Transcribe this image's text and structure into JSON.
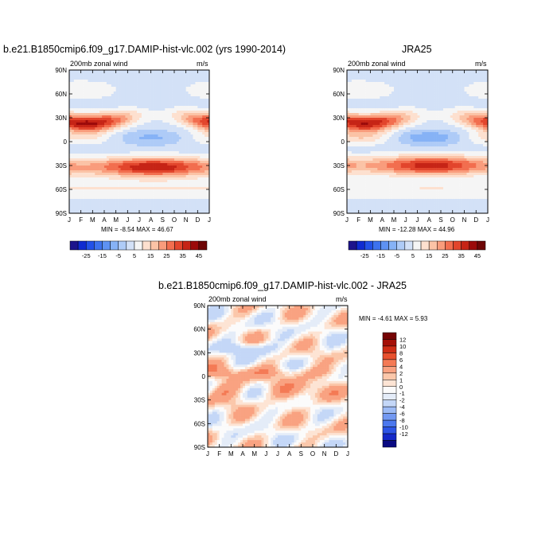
{
  "colors": {
    "full_levels": [
      "#1d148c",
      "#0f2bd1",
      "#2251e8",
      "#3d72ee",
      "#5e92f3",
      "#86b2f6",
      "#aecbf7",
      "#d3e1f7",
      "#f5f5f5",
      "#fde0cf",
      "#fbc3a6",
      "#f99c7c",
      "#f26e4f",
      "#e2452c",
      "#c62416",
      "#9c0a0a",
      "#6e0606"
    ],
    "diff_levels": [
      "#0a0a82",
      "#1428c8",
      "#2d55e6",
      "#4c78ee",
      "#7399f2",
      "#9dbbf5",
      "#c4d7f7",
      "#e4ecf8",
      "#fbfbfb",
      "#fde4d4",
      "#fbc7aa",
      "#f9a281",
      "#f47a55",
      "#e8512f",
      "#cf2d16",
      "#a51008",
      "#760404"
    ]
  },
  "chart_data": [
    {
      "type": "heatmap",
      "id": "model",
      "title": "b.e21.B1850cmip6.f09_g17.DAMIP-hist-vlc.002 (yrs 1990-2014)",
      "left_label": "200mb zonal wind",
      "right_label": "m/s",
      "xticks": [
        "J",
        "F",
        "M",
        "A",
        "M",
        "J",
        "J",
        "A",
        "S",
        "O",
        "N",
        "D",
        "J"
      ],
      "yticks": [
        "90N",
        "60N",
        "30N",
        "0",
        "30S",
        "60S",
        "90S"
      ],
      "x_range": [
        0,
        12
      ],
      "y_range": [
        -90,
        90
      ],
      "min": -8.54,
      "max": 46.67,
      "minmax_text": "MIN =  -8.54 MAX =  46.67",
      "levels": [
        -25,
        -20,
        -15,
        -10,
        -5,
        0,
        5,
        10,
        15,
        20,
        25,
        30,
        35,
        40,
        45
      ],
      "colorbar_labels": [
        "-25",
        "-15",
        "-5",
        "5",
        "15",
        "25",
        "35",
        "45"
      ],
      "jets": [
        {
          "lat": 28,
          "amp": 40,
          "phase_month": 1.5,
          "seasonal_amp": 0.45,
          "width": 11
        },
        {
          "lat": -32,
          "amp": 38,
          "phase_month": 7.2,
          "seasonal_amp": 0.25,
          "width": 12
        },
        {
          "lat": 5,
          "amp": -8,
          "phase_month": 7,
          "seasonal_amp": 1.0,
          "width": 9
        }
      ]
    },
    {
      "type": "heatmap",
      "id": "jra25",
      "title": "JRA25",
      "left_label": "200mb zonal wind",
      "right_label": "m/s",
      "xticks": [
        "J",
        "F",
        "M",
        "A",
        "M",
        "J",
        "J",
        "A",
        "S",
        "O",
        "N",
        "D",
        "J"
      ],
      "yticks": [
        "90N",
        "60N",
        "30N",
        "0",
        "30S",
        "60S",
        "90S"
      ],
      "x_range": [
        0,
        12
      ],
      "y_range": [
        -90,
        90
      ],
      "min": -12.28,
      "max": 44.96,
      "minmax_text": "MIN = -12.28 MAX =  44.96",
      "levels": [
        -25,
        -20,
        -15,
        -10,
        -5,
        0,
        5,
        10,
        15,
        20,
        25,
        30,
        35,
        40,
        45
      ],
      "colorbar_labels": [
        "-25",
        "-15",
        "-5",
        "5",
        "15",
        "25",
        "35",
        "45"
      ],
      "jets": [
        {
          "lat": 28,
          "amp": 38,
          "phase_month": 1.5,
          "seasonal_amp": 0.45,
          "width": 11
        },
        {
          "lat": -30,
          "amp": 36,
          "phase_month": 7.2,
          "seasonal_amp": 0.25,
          "width": 12
        },
        {
          "lat": 5,
          "amp": -11,
          "phase_month": 7,
          "seasonal_amp": 1.0,
          "width": 9
        }
      ]
    },
    {
      "type": "heatmap",
      "id": "difference",
      "title": "b.e21.B1850cmip6.f09_g17.DAMIP-hist-vlc.002 - JRA25",
      "left_label": "200mb zonal wind",
      "right_label": "m/s",
      "xticks": [
        "J",
        "F",
        "M",
        "A",
        "M",
        "J",
        "J",
        "A",
        "S",
        "O",
        "N",
        "D",
        "J"
      ],
      "yticks": [
        "90N",
        "60N",
        "30N",
        "0",
        "30S",
        "60S",
        "90S"
      ],
      "x_range": [
        0,
        12
      ],
      "y_range": [
        -90,
        90
      ],
      "min": -4.61,
      "max": 5.93,
      "minmax_text": "MIN =  -4.61 MAX =   5.93",
      "levels": [
        -12,
        -10,
        -8,
        -6,
        -4,
        -2,
        -1,
        0,
        1,
        2,
        4,
        6,
        8,
        10,
        12
      ],
      "colorbar_labels": [
        "12",
        "10",
        "8",
        "6",
        "4",
        "2",
        "1",
        "0",
        "-1",
        "-2",
        "-4",
        "-6",
        "-8",
        "-10",
        "-12"
      ]
    }
  ]
}
